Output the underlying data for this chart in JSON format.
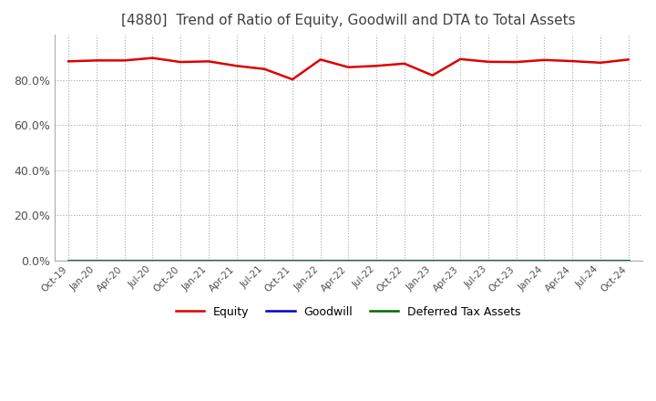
{
  "title": "[4880]  Trend of Ratio of Equity, Goodwill and DTA to Total Assets",
  "title_fontsize": 11,
  "title_color": "#404040",
  "background_color": "#ffffff",
  "plot_background_color": "#ffffff",
  "grid_color": "#aaaaaa",
  "x_labels": [
    "Oct-19",
    "Jan-20",
    "Apr-20",
    "Jul-20",
    "Oct-20",
    "Jan-21",
    "Apr-21",
    "Jul-21",
    "Oct-21",
    "Jan-22",
    "Apr-22",
    "Jul-22",
    "Oct-22",
    "Jan-23",
    "Apr-23",
    "Jul-23",
    "Oct-23",
    "Jan-24",
    "Apr-24",
    "Jul-24",
    "Oct-24"
  ],
  "equity": [
    0.882,
    0.886,
    0.886,
    0.897,
    0.879,
    0.882,
    0.862,
    0.848,
    0.802,
    0.89,
    0.856,
    0.862,
    0.872,
    0.82,
    0.892,
    0.88,
    0.879,
    0.888,
    0.883,
    0.876,
    0.89
  ],
  "goodwill": [
    0.0,
    0.0,
    0.0,
    0.0,
    0.0,
    0.0,
    0.0,
    0.0,
    0.0,
    0.0,
    0.0,
    0.0,
    0.0,
    0.0,
    0.0,
    0.0,
    0.0,
    0.0,
    0.0,
    0.0,
    0.0
  ],
  "dta": [
    0.0,
    0.0,
    0.0,
    0.0,
    0.0,
    0.0,
    0.0,
    0.0,
    0.0,
    0.0,
    0.0,
    0.0,
    0.0,
    0.0,
    0.0,
    0.0,
    0.0,
    0.0,
    0.0,
    0.0,
    0.0
  ],
  "equity_color": "#dd0000",
  "goodwill_color": "#0000cc",
  "dta_color": "#006600",
  "line_width": 1.8,
  "ylim": [
    0.0,
    1.0
  ],
  "yticks": [
    0.0,
    0.2,
    0.4,
    0.6,
    0.8
  ],
  "legend_labels": [
    "Equity",
    "Goodwill",
    "Deferred Tax Assets"
  ],
  "legend_loc": "lower center",
  "legend_ncol": 3
}
